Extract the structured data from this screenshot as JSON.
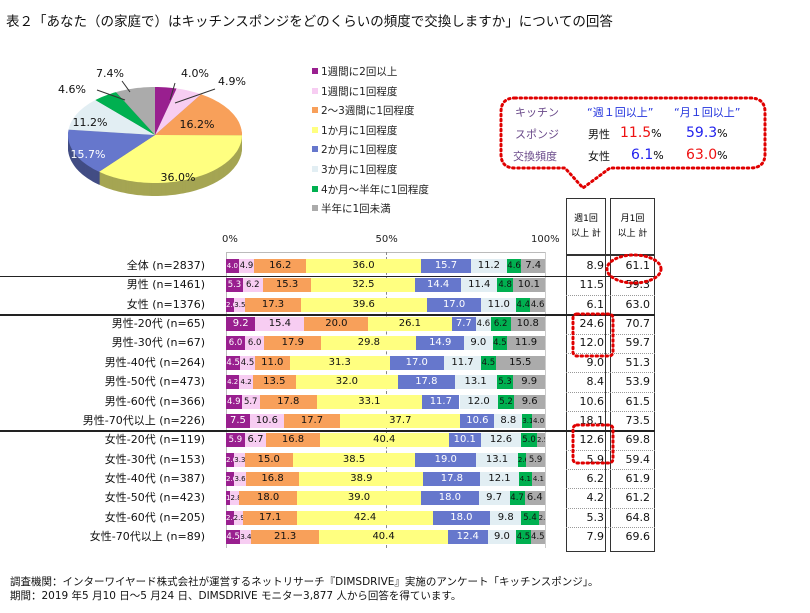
{
  "title": "表２「あなた（の家庭で）はキッチンスポンジをどのくらいの頻度で交換しますか」についての回答",
  "colors": {
    "s1": "#991F8F",
    "s2": "#F7CDF2",
    "s3": "#F8A05A",
    "s4": "#FFFF80",
    "s5": "#6677CC",
    "s6": "#E2EEF3",
    "s7": "#00B050",
    "s8": "#ABABAB",
    "highlight": "#E00000"
  },
  "chart_data": [
    {
      "type": "pie",
      "title": "全体",
      "categories": [
        "1週間に2回以上",
        "1週間に1回程度",
        "2〜3週間に1回程度",
        "1か月に1回程度",
        "2か月に1回程度",
        "3か月に1回程度",
        "4か月〜半年に1回程度",
        "半年に1回未満"
      ],
      "values": [
        4.0,
        4.9,
        16.2,
        36.0,
        15.7,
        11.2,
        4.6,
        7.4
      ],
      "labels": [
        "4.0%",
        "4.9%",
        "16.2%",
        "36.0%",
        "15.7%",
        "11.2%",
        "4.6%",
        "7.4%"
      ],
      "legend": "right"
    },
    {
      "type": "bar",
      "stacked": true,
      "orientation": "horizontal",
      "xlim": [
        0,
        100
      ],
      "xticks": [
        "0%",
        "50%",
        "100%"
      ],
      "series_names": [
        "1週間に2回以上",
        "1週間に1回程度",
        "2〜3週間に1回程度",
        "1か月に1回程度",
        "2か月に1回程度",
        "3か月に1回程度",
        "4か月〜半年に1回程度",
        "半年に1回未満"
      ],
      "rows": [
        {
          "label": "全体 (n=2837)",
          "values": [
            4.0,
            4.9,
            16.2,
            36.0,
            15.7,
            11.2,
            4.6,
            7.4
          ],
          "week": "8.9",
          "month": "61.1"
        },
        {
          "label": "男性 (n=1461)",
          "values": [
            5.3,
            6.2,
            15.3,
            32.5,
            14.4,
            11.4,
            4.8,
            10.1
          ],
          "week": "11.5",
          "month": "59.3"
        },
        {
          "label": "女性 (n=1376)",
          "values": [
            2.6,
            3.5,
            17.3,
            39.6,
            17.0,
            11.0,
            4.4,
            4.6
          ],
          "week": "6.1",
          "month": "63.0"
        },
        {
          "label": "男性-20代 (n=65)",
          "values": [
            9.2,
            15.4,
            20.0,
            26.1,
            7.7,
            4.6,
            6.2,
            10.8
          ],
          "week": "24.6",
          "month": "70.7"
        },
        {
          "label": "男性-30代 (n=67)",
          "values": [
            6.0,
            6.0,
            17.9,
            29.8,
            14.9,
            9.0,
            4.5,
            11.9
          ],
          "week": "12.0",
          "month": "59.7"
        },
        {
          "label": "男性-40代 (n=264)",
          "values": [
            4.5,
            4.5,
            11.0,
            31.3,
            17.0,
            11.7,
            4.5,
            15.5
          ],
          "week": "9.0",
          "month": "51.3"
        },
        {
          "label": "男性-50代 (n=473)",
          "values": [
            4.2,
            4.2,
            13.5,
            32.0,
            17.8,
            13.1,
            5.3,
            9.9
          ],
          "week": "8.4",
          "month": "53.9"
        },
        {
          "label": "男性-60代 (n=366)",
          "values": [
            4.9,
            5.7,
            17.8,
            33.1,
            11.7,
            12.0,
            5.2,
            9.6
          ],
          "week": "10.6",
          "month": "61.5"
        },
        {
          "label": "男性-70代以上 (n=226)",
          "values": [
            7.5,
            10.6,
            17.7,
            37.7,
            10.6,
            8.8,
            3.1,
            4.0
          ],
          "week": "18.1",
          "month": "73.5"
        },
        {
          "label": "女性-20代 (n=119)",
          "values": [
            5.9,
            6.7,
            16.8,
            40.4,
            10.1,
            12.6,
            5.0,
            2.5
          ],
          "week": "12.6",
          "month": "69.8"
        },
        {
          "label": "女性-30代 (n=153)",
          "values": [
            2.6,
            3.3,
            15.0,
            38.5,
            19.0,
            13.1,
            2.6,
            5.9
          ],
          "week": "5.9",
          "month": "59.4"
        },
        {
          "label": "女性-40代 (n=387)",
          "values": [
            2.6,
            3.6,
            16.8,
            38.9,
            17.8,
            12.1,
            4.1,
            4.1
          ],
          "week": "6.2",
          "month": "61.9"
        },
        {
          "label": "女性-50代 (n=423)",
          "values": [
            1.4,
            2.8,
            18.0,
            39.0,
            18.0,
            9.7,
            4.7,
            6.4
          ],
          "week": "4.2",
          "month": "61.2"
        },
        {
          "label": "女性-60代 (n=205)",
          "values": [
            2.4,
            2.9,
            17.1,
            42.4,
            18.0,
            9.8,
            5.4,
            2.0
          ],
          "week": "5.3",
          "month": "64.8"
        },
        {
          "label": "女性-70代以上 (n=89)",
          "values": [
            4.5,
            3.4,
            21.3,
            40.4,
            12.4,
            9.0,
            4.5,
            4.5
          ],
          "week": "7.9",
          "month": "69.6"
        }
      ],
      "table_headers": {
        "week_line1": "週1回",
        "week_line2": "以上 計",
        "month_line1": "月1回",
        "month_line2": "以上 計"
      }
    }
  ],
  "callout": {
    "row1_label": "キッチン",
    "row2_label": "スポンジ",
    "row3_label": "交換頻度",
    "col1_header": "“週１回以上”",
    "col2_header": "“月１回以上”",
    "male_label": "男性",
    "male_week_num": "11.5",
    "male_month_num": "59.3",
    "female_label": "女性",
    "female_week_num": "6.1",
    "female_month_num": "63.0",
    "pct": "%"
  },
  "footer": {
    "line1": "調査機関：インターワイヤード株式会社が運営するネットリサーチ『DIMSDRIVE』実施のアンケート「キッチンスポンジ」。",
    "line2": "期間：2019 年5 月10 日〜5 月24 日、DIMSDRIVE モニター3,877 人から回答を得ています。"
  }
}
